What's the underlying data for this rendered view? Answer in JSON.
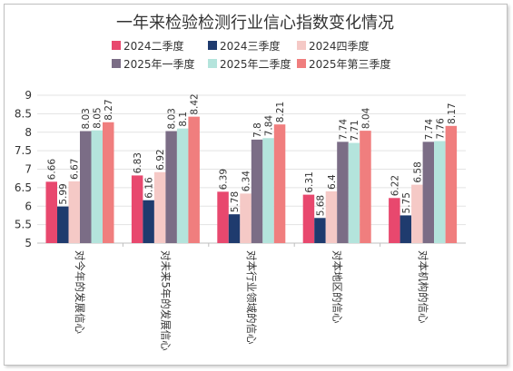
{
  "chart_data": {
    "type": "bar",
    "title": "一年来检验检测行业信心指数变化情况",
    "xlabel": "",
    "ylabel": "",
    "ylim": [
      5,
      9
    ],
    "yticks": [
      5,
      5.5,
      6,
      6.5,
      7,
      7.5,
      8,
      8.5,
      9
    ],
    "grid": true,
    "legend_position": "top",
    "categories": [
      "对今年的发展信心",
      "对未来5年的发展信心",
      "对本行业领域的信心",
      "对本地区的信心",
      "对本机构的信心"
    ],
    "series": [
      {
        "name": "2024二季度",
        "color": "#e8486e",
        "values": [
          6.66,
          6.83,
          6.39,
          6.31,
          6.22
        ]
      },
      {
        "name": "2024三季度",
        "color": "#1f3b6e",
        "values": [
          5.99,
          6.16,
          5.78,
          5.68,
          5.75
        ]
      },
      {
        "name": "2024四季度",
        "color": "#f5c9c6",
        "values": [
          6.67,
          6.92,
          6.34,
          6.4,
          6.58
        ]
      },
      {
        "name": "2025年一季度",
        "color": "#7b6d86",
        "values": [
          8.03,
          8.03,
          7.8,
          7.74,
          7.74
        ]
      },
      {
        "name": "2025年二季度",
        "color": "#b4e4dc",
        "values": [
          8.05,
          8.1,
          7.84,
          7.71,
          7.76
        ]
      },
      {
        "name": "2025年第三季度",
        "color": "#f07e7e",
        "values": [
          8.27,
          8.42,
          8.21,
          8.04,
          8.17
        ]
      }
    ]
  }
}
